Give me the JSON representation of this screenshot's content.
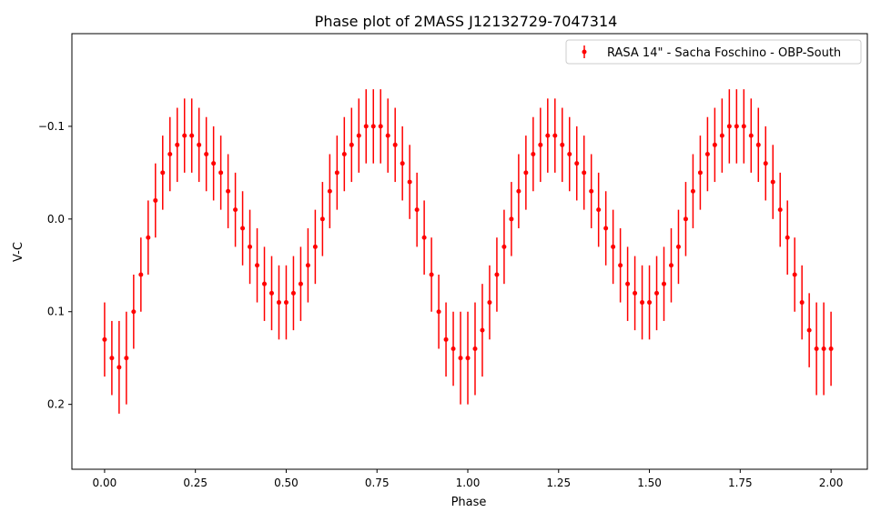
{
  "chart_data": {
    "type": "scatter",
    "title": "Phase plot of 2MASS J12132729-7047314",
    "xlabel": "Phase",
    "ylabel": "V-C",
    "xlim": [
      -0.09,
      2.1
    ],
    "ylim": [
      0.27,
      -0.2
    ],
    "y_inverted": true,
    "xticks": [
      "0.00",
      "0.25",
      "0.50",
      "0.75",
      "1.00",
      "1.25",
      "1.50",
      "1.75",
      "2.00"
    ],
    "yticks": [
      "−0.1",
      "0.0",
      "0.1",
      "0.2"
    ],
    "ytick_values": [
      -0.1,
      0.0,
      0.1,
      0.2
    ],
    "grid": false,
    "legend_position": "top-right",
    "series": [
      {
        "name": "RASA 14\" - Sacha Foschino - OBP-South",
        "color": "#ff0000",
        "marker": "point-with-errorbar",
        "x": [
          0.0,
          0.02,
          0.04,
          0.06,
          0.08,
          0.1,
          0.12,
          0.14,
          0.16,
          0.18,
          0.2,
          0.22,
          0.24,
          0.26,
          0.28,
          0.3,
          0.32,
          0.34,
          0.36,
          0.38,
          0.4,
          0.42,
          0.44,
          0.46,
          0.48,
          0.5,
          0.52,
          0.54,
          0.56,
          0.58,
          0.6,
          0.62,
          0.64,
          0.66,
          0.68,
          0.7,
          0.72,
          0.74,
          0.76,
          0.78,
          0.8,
          0.82,
          0.84,
          0.86,
          0.88,
          0.9,
          0.92,
          0.94,
          0.96,
          0.98,
          1.0,
          1.02,
          1.04,
          1.06,
          1.08,
          1.1,
          1.12,
          1.14,
          1.16,
          1.18,
          1.2,
          1.22,
          1.24,
          1.26,
          1.28,
          1.3,
          1.32,
          1.34,
          1.36,
          1.38,
          1.4,
          1.42,
          1.44,
          1.46,
          1.48,
          1.5,
          1.52,
          1.54,
          1.56,
          1.58,
          1.6,
          1.62,
          1.64,
          1.66,
          1.68,
          1.7,
          1.72,
          1.74,
          1.76,
          1.78,
          1.8,
          1.82,
          1.84,
          1.86,
          1.88,
          1.9,
          1.92,
          1.94,
          1.96,
          1.98,
          2.0
        ],
        "y": [
          0.13,
          0.15,
          0.16,
          0.15,
          0.1,
          0.06,
          0.02,
          -0.02,
          -0.05,
          -0.07,
          -0.08,
          -0.09,
          -0.09,
          -0.08,
          -0.07,
          -0.06,
          -0.05,
          -0.03,
          -0.01,
          0.01,
          0.03,
          0.05,
          0.07,
          0.08,
          0.09,
          0.09,
          0.08,
          0.07,
          0.05,
          0.03,
          0.0,
          -0.03,
          -0.05,
          -0.07,
          -0.08,
          -0.09,
          -0.1,
          -0.1,
          -0.1,
          -0.09,
          -0.08,
          -0.06,
          -0.04,
          -0.01,
          0.02,
          0.06,
          0.1,
          0.13,
          0.14,
          0.15,
          0.15,
          0.14,
          0.12,
          0.09,
          0.06,
          0.03,
          0.0,
          -0.03,
          -0.05,
          -0.07,
          -0.08,
          -0.09,
          -0.09,
          -0.08,
          -0.07,
          -0.06,
          -0.05,
          -0.03,
          -0.01,
          0.01,
          0.03,
          0.05,
          0.07,
          0.08,
          0.09,
          0.09,
          0.08,
          0.07,
          0.05,
          0.03,
          0.0,
          -0.03,
          -0.05,
          -0.07,
          -0.08,
          -0.09,
          -0.1,
          -0.1,
          -0.1,
          -0.09,
          -0.08,
          -0.06,
          -0.04,
          -0.01,
          0.02,
          0.06,
          0.09,
          0.12,
          0.14,
          0.14,
          0.14
        ],
        "yerr": [
          0.04,
          0.04,
          0.05,
          0.05,
          0.04,
          0.04,
          0.04,
          0.04,
          0.04,
          0.04,
          0.04,
          0.04,
          0.04,
          0.04,
          0.04,
          0.04,
          0.04,
          0.04,
          0.04,
          0.04,
          0.04,
          0.04,
          0.04,
          0.04,
          0.04,
          0.04,
          0.04,
          0.04,
          0.04,
          0.04,
          0.04,
          0.04,
          0.04,
          0.04,
          0.04,
          0.04,
          0.04,
          0.04,
          0.04,
          0.04,
          0.04,
          0.04,
          0.04,
          0.04,
          0.04,
          0.04,
          0.04,
          0.04,
          0.04,
          0.05,
          0.05,
          0.05,
          0.05,
          0.04,
          0.04,
          0.04,
          0.04,
          0.04,
          0.04,
          0.04,
          0.04,
          0.04,
          0.04,
          0.04,
          0.04,
          0.04,
          0.04,
          0.04,
          0.04,
          0.04,
          0.04,
          0.04,
          0.04,
          0.04,
          0.04,
          0.04,
          0.04,
          0.04,
          0.04,
          0.04,
          0.04,
          0.04,
          0.04,
          0.04,
          0.04,
          0.04,
          0.04,
          0.04,
          0.04,
          0.04,
          0.04,
          0.04,
          0.04,
          0.04,
          0.04,
          0.04,
          0.04,
          0.04,
          0.05,
          0.05,
          0.04
        ]
      }
    ]
  }
}
